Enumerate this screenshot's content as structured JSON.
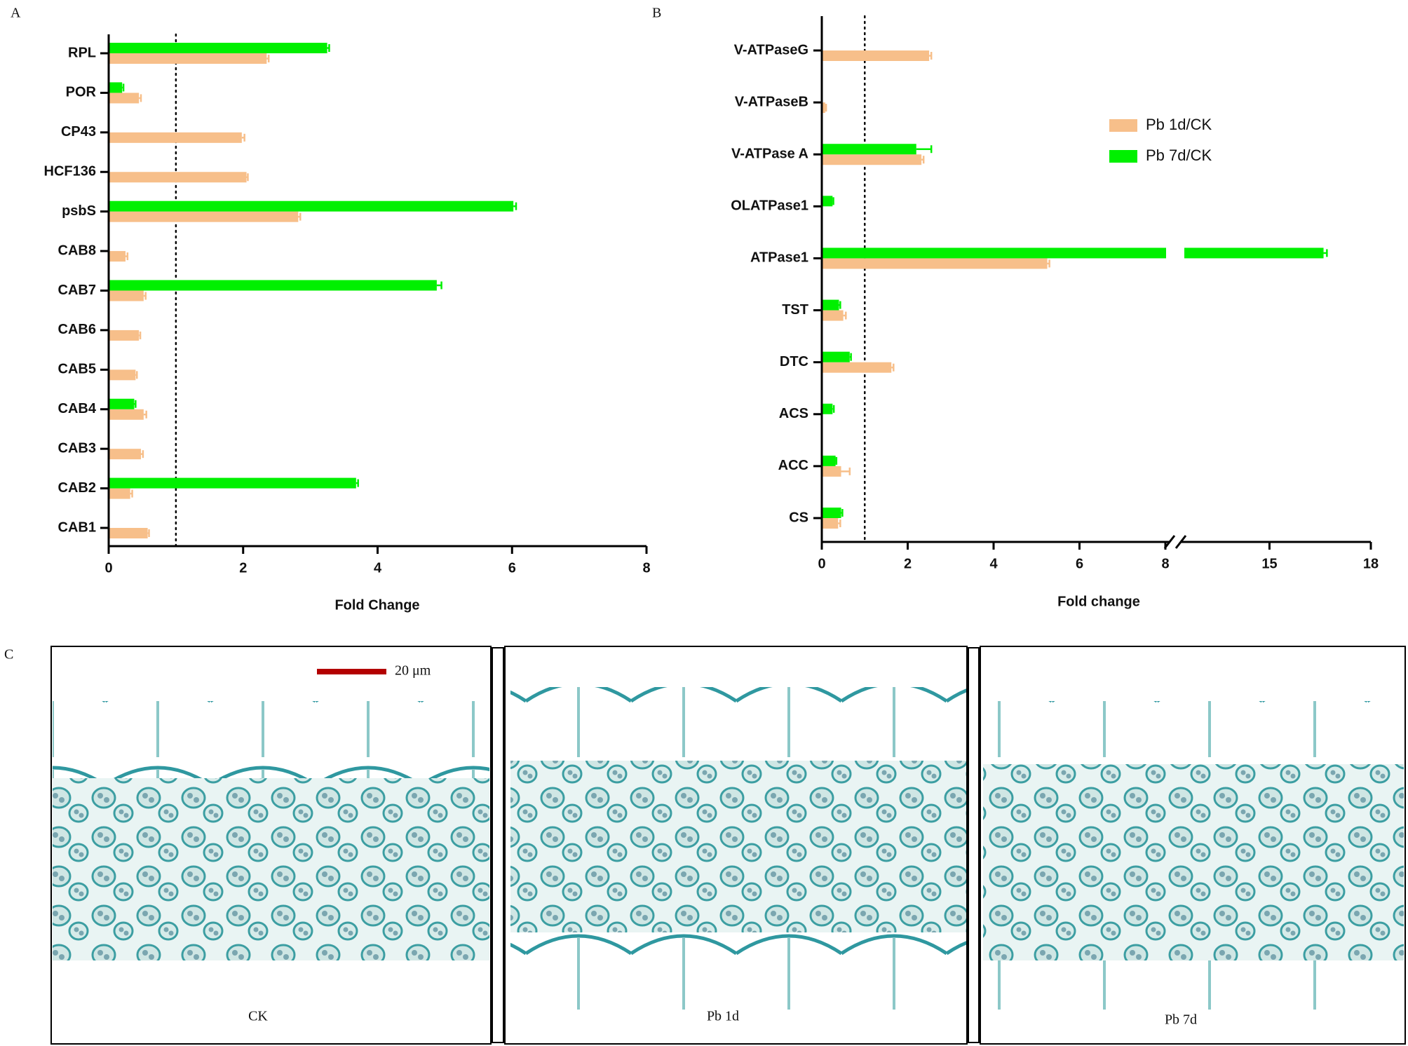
{
  "panels": {
    "a": "A",
    "b": "B",
    "c": "C"
  },
  "chart_data": [
    {
      "type": "bar",
      "orientation": "horizontal",
      "categories": [
        "RPL",
        "POR",
        "CP43",
        "HCF136",
        "psbS",
        "CAB8",
        "CAB7",
        "CAB6",
        "CAB5",
        "CAB4",
        "CAB3",
        "CAB2",
        "CAB1"
      ],
      "series": [
        {
          "color": "#f7bf8a",
          "values": [
            2.35,
            0.45,
            1.98,
            2.05,
            2.82,
            0.25,
            0.52,
            0.45,
            0.4,
            0.52,
            0.48,
            0.32,
            0.58
          ],
          "errors": [
            0.03,
            0.03,
            0.04,
            0.02,
            0.03,
            0.03,
            0.03,
            0.02,
            0.02,
            0.04,
            0.03,
            0.03,
            0.02
          ]
        },
        {
          "color": "#00f000",
          "values": [
            3.25,
            0.2,
            null,
            null,
            6.02,
            null,
            4.88,
            null,
            null,
            0.38,
            null,
            3.68,
            null
          ],
          "errors": [
            0.03,
            0.02,
            null,
            null,
            0.04,
            null,
            0.07,
            null,
            null,
            0.02,
            null,
            0.03,
            null
          ]
        }
      ],
      "xlim": [
        0,
        8
      ],
      "xticks": [
        0,
        2,
        4,
        6,
        8
      ],
      "xlabel": "Fold Change",
      "reference_line": 1
    },
    {
      "type": "bar",
      "orientation": "horizontal",
      "categories": [
        "V-ATPaseG",
        "V-ATPaseB",
        "V-ATPase A",
        "OLATPase1",
        "ATPase1",
        "TST",
        "DTC",
        "ACS",
        "ACC",
        "CS"
      ],
      "series": [
        {
          "name": "Pb 1d/CK",
          "color": "#f7bf8a",
          "values": [
            2.5,
            0.08,
            2.32,
            null,
            5.25,
            0.5,
            1.62,
            null,
            0.45,
            0.38
          ],
          "errors": [
            0.05,
            0.02,
            0.05,
            null,
            0.05,
            0.06,
            0.05,
            null,
            0.2,
            0.05
          ]
        },
        {
          "name": "Pb 7d/CK",
          "color": "#00f000",
          "values": [
            null,
            null,
            2.2,
            0.25,
            16.6,
            0.4,
            0.65,
            0.25,
            0.32,
            0.45
          ],
          "errors": [
            null,
            null,
            0.35,
            0.02,
            0.1,
            0.03,
            0.03,
            0.03,
            0.02,
            0.03
          ]
        }
      ],
      "xlim": [
        0,
        18
      ],
      "x_break": [
        8,
        12.5
      ],
      "xticks": [
        0,
        2,
        4,
        6,
        8,
        15,
        18
      ],
      "xlabel": "Fold change",
      "reference_line": 1,
      "legend": "upper right"
    }
  ],
  "micrographs": {
    "scale_bar": "20 μm",
    "labels": [
      "CK",
      "Pb 1d",
      "Pb 7d"
    ]
  }
}
